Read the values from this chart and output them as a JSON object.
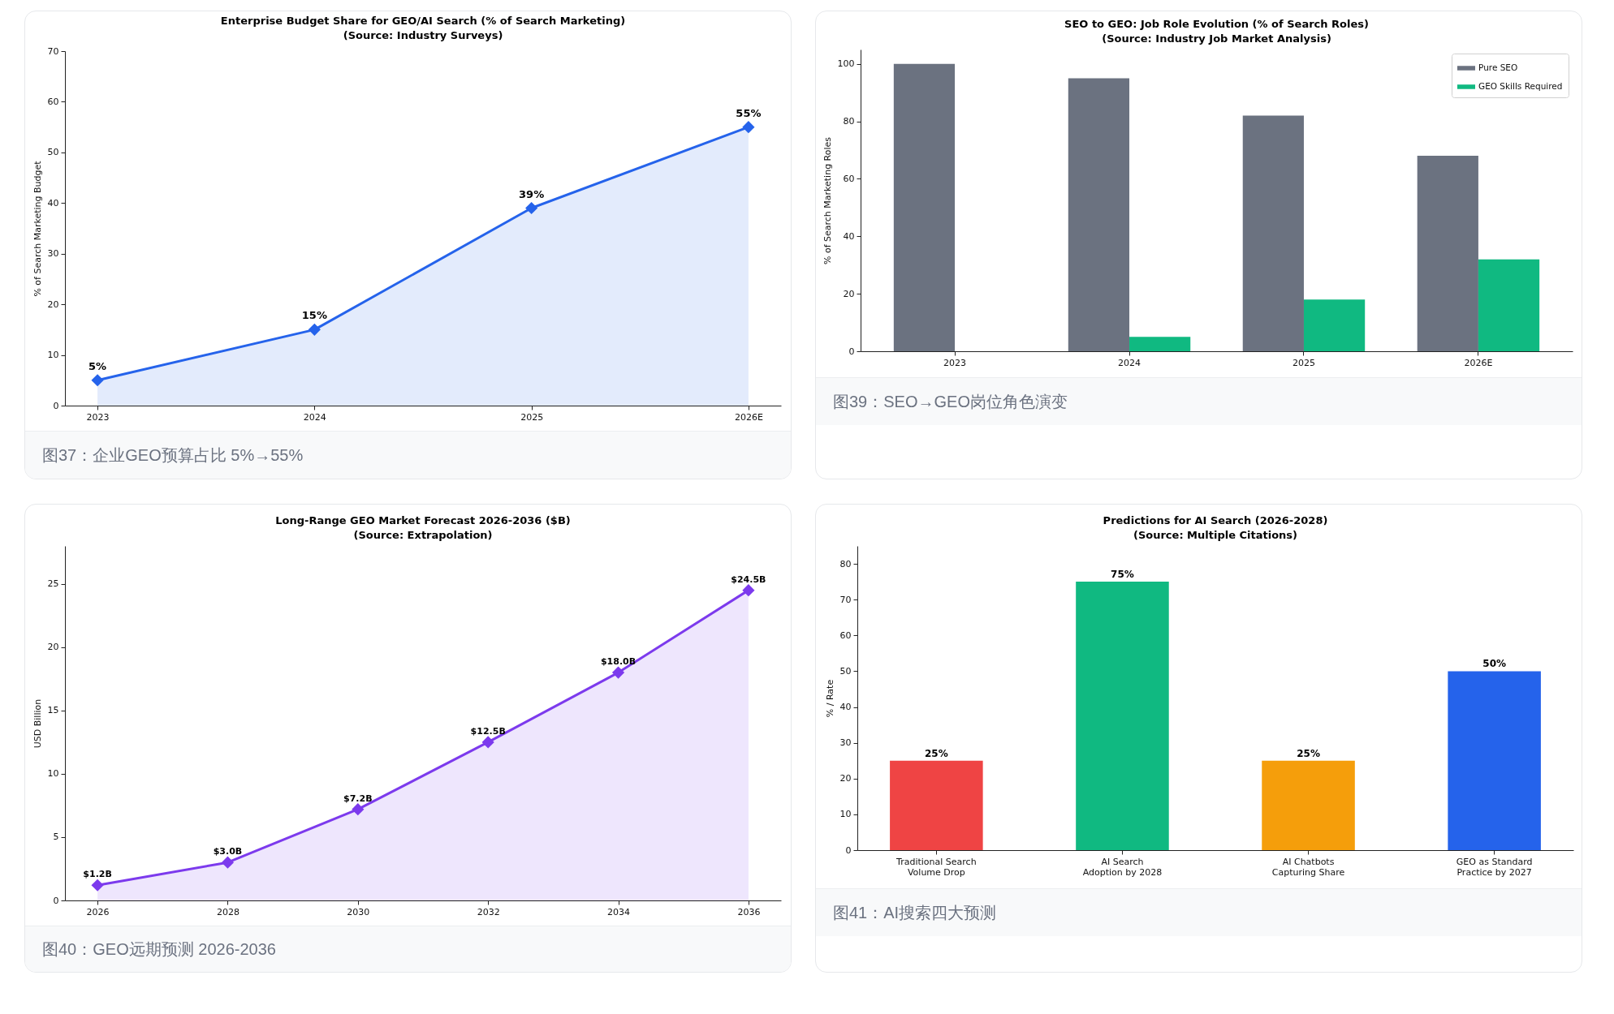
{
  "chart_data": [
    {
      "type": "area",
      "title": "Enterprise Budget Share for GEO/AI Search (% of Search Marketing)",
      "subtitle": "(Source: Industry Surveys)",
      "ylabel": "% of Search Marketing Budget",
      "categories": [
        "2023",
        "2024",
        "2025",
        "2026E"
      ],
      "values": [
        5,
        15,
        39,
        55
      ],
      "value_labels": [
        "5%",
        "15%",
        "39%",
        "55%"
      ],
      "color": "#2563eb",
      "ylim": [
        0,
        70
      ],
      "yticks": [
        0,
        10,
        20,
        30,
        40,
        50,
        60,
        70
      ],
      "marker": "diamond",
      "annotations": [
        "图37：企业GEO预算占比 5%→55%"
      ]
    },
    {
      "type": "bar",
      "title": "SEO to GEO: Job Role Evolution (% of Search Roles)",
      "subtitle": "(Source: Industry Job Market Analysis)",
      "ylabel": "% of Search Marketing Roles",
      "categories": [
        "2023",
        "2024",
        "2025",
        "2026E"
      ],
      "series": [
        {
          "name": "Pure SEO",
          "color": "#6b7280",
          "values": [
            100,
            95,
            82,
            68
          ]
        },
        {
          "name": "GEO Skills Required",
          "color": "#10b981",
          "values": [
            0,
            5,
            18,
            32
          ]
        }
      ],
      "ylim": [
        0,
        105
      ],
      "yticks": [
        0,
        20,
        40,
        60,
        80,
        100
      ],
      "legend": "top right",
      "annotations": [
        "图39：SEO→GEO岗位角色演变"
      ]
    },
    {
      "type": "area",
      "title": "Long-Range GEO Market Forecast 2026-2036 ($B)",
      "subtitle": "(Source: Extrapolation)",
      "ylabel": "USD Billion",
      "x": [
        2026,
        2028,
        2030,
        2032,
        2034,
        2036
      ],
      "values": [
        1.2,
        3.0,
        7.2,
        12.5,
        18.0,
        24.5
      ],
      "value_labels": [
        "$1.2B",
        "$3.0B",
        "$7.2B",
        "$12.5B",
        "$18.0B",
        "$24.5B"
      ],
      "color": "#7c3aed",
      "xlim": [
        2025.5,
        2036.5
      ],
      "xticks": [
        2026,
        2028,
        2030,
        2032,
        2034,
        2036
      ],
      "ylim": [
        0,
        28
      ],
      "yticks": [
        0,
        5,
        10,
        15,
        20,
        25
      ],
      "marker": "diamond",
      "annotations": [
        "图40：GEO远期预测 2026-2036"
      ]
    },
    {
      "type": "bar",
      "title": "Predictions for AI Search (2026-2028)",
      "subtitle": "(Source: Multiple Citations)",
      "ylabel": "% / Rate",
      "categories": [
        "Traditional Search\nVolume Drop",
        "AI Search\nAdoption by 2028",
        "AI Chatbots\nCapturing Share",
        "GEO as Standard\nPractice by 2027"
      ],
      "values": [
        25,
        75,
        25,
        50
      ],
      "colors": [
        "#ef4444",
        "#10b981",
        "#f59e0b",
        "#2563eb"
      ],
      "value_labels": [
        "25%",
        "75%",
        "25%",
        "50%"
      ],
      "ylim": [
        0,
        85
      ],
      "yticks": [
        0,
        10,
        20,
        30,
        40,
        50,
        60,
        70,
        80
      ],
      "annotations": [
        "图41：AI搜索四大预测"
      ]
    }
  ]
}
